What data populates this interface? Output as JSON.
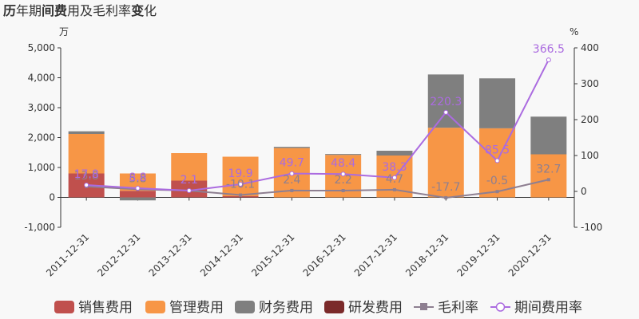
{
  "title": {
    "parts": [
      {
        "text": "历",
        "bold": true
      },
      {
        "text": "年期",
        "bold": false
      },
      {
        "text": "间费",
        "bold": true
      },
      {
        "text": "用及毛利率",
        "bold": false
      },
      {
        "text": "变",
        "bold": true
      },
      {
        "text": "化",
        "bold": false
      }
    ]
  },
  "chart_data": {
    "type": "bar",
    "stacked": true,
    "categories": [
      "2011-12-31",
      "2012-12-31",
      "2013-12-31",
      "2014-12-31",
      "2015-12-31",
      "2016-12-31",
      "2017-12-31",
      "2018-12-31",
      "2019-12-31",
      "2020-12-31"
    ],
    "left_axis": {
      "unit": "万",
      "ylim": [
        -1000,
        5000
      ],
      "ticks": [
        -1000,
        0,
        1000,
        2000,
        3000,
        4000,
        5000
      ],
      "tick_labels": [
        "-1,000",
        "0",
        "1,000",
        "2,000",
        "3,000",
        "4,000",
        "5,000"
      ]
    },
    "right_axis": {
      "unit": "%",
      "ylim": [
        -100,
        400
      ],
      "ticks": [
        -100,
        0,
        100,
        200,
        300,
        400
      ],
      "tick_labels": [
        "-100",
        "0",
        "100",
        "200",
        "300",
        "400"
      ]
    },
    "bar_series": [
      {
        "name": "销售费用",
        "color": "#c0504d",
        "values": [
          800,
          220,
          560,
          40,
          0,
          0,
          0,
          0,
          0,
          0
        ]
      },
      {
        "name": "管理费用",
        "color": "#f79646",
        "values": [
          1320,
          580,
          920,
          1320,
          1650,
          1420,
          1400,
          2330,
          2310,
          1440
        ]
      },
      {
        "name": "财务费用",
        "color": "#7f7f7f",
        "values": [
          90,
          -100,
          0,
          0,
          40,
          30,
          160,
          1780,
          1670,
          1260
        ]
      },
      {
        "name": "研发费用",
        "color": "#7b2a2a",
        "values": [
          0,
          0,
          0,
          0,
          0,
          0,
          0,
          0,
          0,
          0
        ]
      }
    ],
    "line_series": [
      {
        "name": "毛利率",
        "color": "#8e7f91",
        "axis": "right",
        "marker": "square",
        "values": [
          13.8,
          5.8,
          2.1,
          -10.1,
          2.4,
          2.2,
          4.7,
          -17.7,
          -0.5,
          32.7
        ],
        "labels": [
          "13.8",
          "5.8",
          "2.1",
          "-10.1",
          "2.4",
          "2.2",
          "4.7",
          "-17.7",
          "-0.5",
          "32.7"
        ]
      },
      {
        "name": "期间费用率",
        "color": "#ab6be0",
        "axis": "right",
        "marker": "circle",
        "values": [
          17.8,
          8.8,
          2.1,
          19.9,
          49.7,
          48.4,
          38.3,
          220.3,
          85.5,
          366.5
        ],
        "labels": [
          "17.8",
          "8.8",
          "2.1",
          "19.9",
          "49.7",
          "48.4",
          "38.3",
          "220.3",
          "85.5",
          "366.5"
        ]
      }
    ],
    "legend_position": "bottom",
    "grid": false
  }
}
